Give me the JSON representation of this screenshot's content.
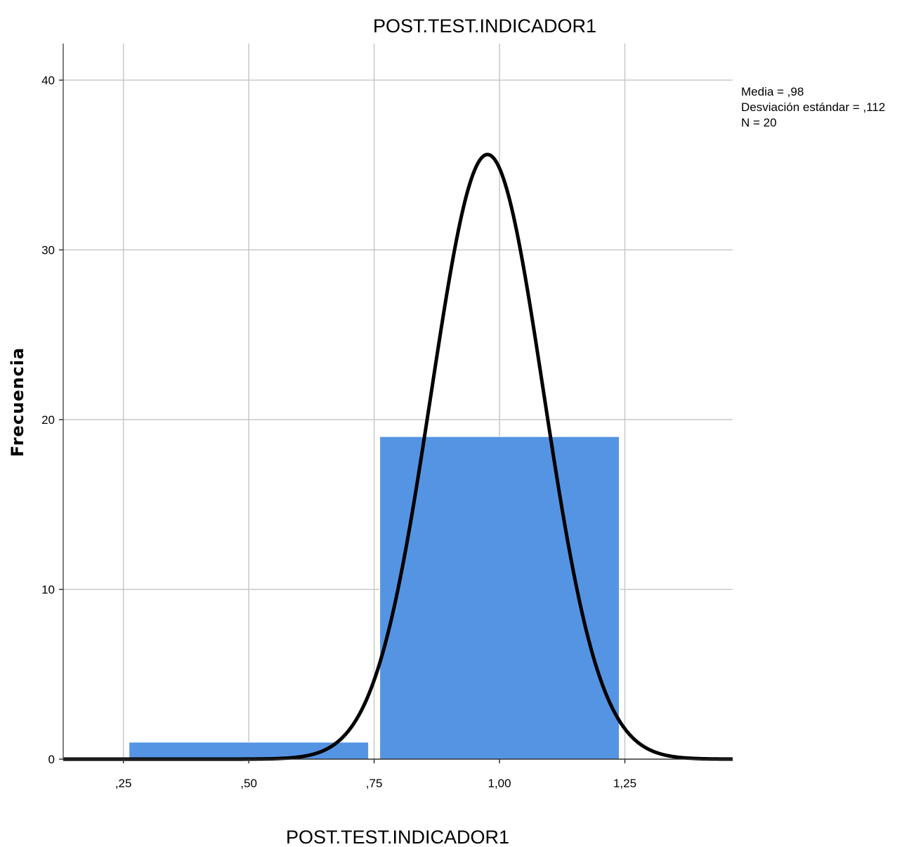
{
  "chart_data": {
    "type": "bar",
    "title": "POST.TEST.INDICADOR1",
    "xlabel": "POST.TEST.INDICADOR1",
    "ylabel": "Frecuencia",
    "xlim": [
      0.13,
      1.465
    ],
    "ylim": [
      0,
      42
    ],
    "x_ticks": [
      0.25,
      0.5,
      0.75,
      1.0,
      1.25
    ],
    "x_tick_labels": [
      ",25",
      ",50",
      ",75",
      "1,00",
      "1,25"
    ],
    "y_ticks": [
      0,
      10,
      20,
      30,
      40
    ],
    "y_tick_labels": [
      "0",
      "10",
      "20",
      "30",
      "40"
    ],
    "grid": true,
    "bar_color": "#5594e3",
    "bins": [
      {
        "x0": 0.25,
        "x1": 0.75,
        "value": 1
      },
      {
        "x0": 0.75,
        "x1": 1.25,
        "value": 19
      }
    ],
    "normal_curve": {
      "mean": 0.976,
      "sd": 0.112,
      "n": 20,
      "bin_width": 0.5,
      "color": "#000000"
    },
    "stats": [
      "Media = ,98",
      "Desviación estándar = ,112",
      "N = 20"
    ]
  }
}
